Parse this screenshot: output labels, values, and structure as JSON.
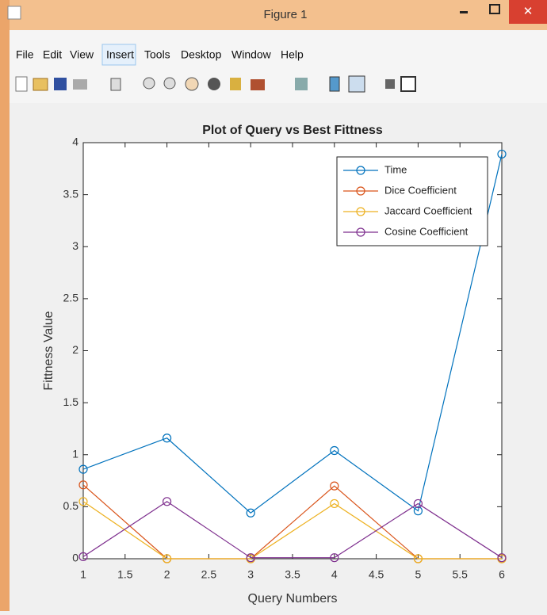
{
  "window": {
    "title": "Figure 1",
    "menu": [
      "File",
      "Edit",
      "View",
      "Insert",
      "Tools",
      "Desktop",
      "Window",
      "Help"
    ]
  },
  "chart_data": {
    "type": "line",
    "title": "Plot of Query vs Best Fittness",
    "x_label": "Query Numbers",
    "y_label": "Fittness Value",
    "x": [
      1,
      2,
      3,
      4,
      5,
      6
    ],
    "series": [
      {
        "name": "Time",
        "color": "#0072bd",
        "values": [
          0.86,
          1.16,
          0.44,
          1.04,
          0.46,
          3.89
        ]
      },
      {
        "name": "Dice Coefficient",
        "color": "#d95319",
        "values": [
          0.71,
          0,
          0,
          0.7,
          0,
          0
        ]
      },
      {
        "name": "Jaccard Coefficient",
        "color": "#edb120",
        "values": [
          0.55,
          0,
          0,
          0.53,
          0,
          0
        ]
      },
      {
        "name": "Cosine Coefficient",
        "color": "#7e2f8e",
        "values": [
          0.02,
          0.55,
          0.01,
          0.01,
          0.53,
          0.01
        ]
      }
    ],
    "xlim": [
      1,
      6
    ],
    "xticks": [
      1,
      1.5,
      2,
      2.5,
      3,
      3.5,
      4,
      4.5,
      5,
      5.5,
      6
    ],
    "ylim": [
      0,
      4
    ],
    "yticks": [
      0,
      0.5,
      1,
      1.5,
      2,
      2.5,
      3,
      3.5,
      4
    ],
    "grid": false,
    "legend": "northeast",
    "marker": "circle"
  }
}
